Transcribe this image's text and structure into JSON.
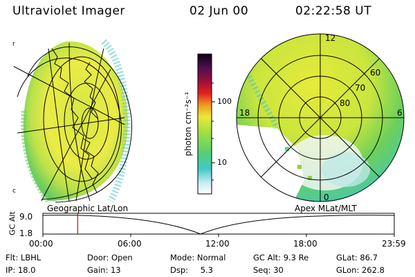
{
  "header": {
    "title": "Ultraviolet Imager",
    "date": "02 Jun 00",
    "time": "02:22:58 UT"
  },
  "colorbar": {
    "unit_label": "photon cm⁻²s⁻¹",
    "ticks": [
      "100",
      "10"
    ]
  },
  "polar_plot": {
    "mlt_labels": {
      "top": "12",
      "left": "18",
      "right": "6",
      "bottom": "0"
    },
    "lat_labels": [
      "60",
      "70",
      "80"
    ]
  },
  "orbit_plot": {
    "left_title": "Geographic Lat/Lon",
    "right_title": "Apex MLat/MLT",
    "y_axis_label": "GC Alt",
    "y_ticks": [
      "9.0",
      "1.8"
    ],
    "x_ticks": [
      "00:00",
      "06:00",
      "12:00",
      "18:00",
      "23:59"
    ],
    "current_time_fraction": 0.099
  },
  "info": {
    "row1": [
      {
        "label": "Flt:",
        "value": "LBHL"
      },
      {
        "label": "Door:",
        "value": "Open"
      },
      {
        "label": "Mode:",
        "value": "Normal"
      },
      {
        "label": "GC Alt:",
        "value": "9.3 Re"
      },
      {
        "label": "GLat:",
        "value": "86.7"
      }
    ],
    "row2": [
      {
        "label": "IP:",
        "value": "18.0"
      },
      {
        "label": "Gain:",
        "value": "13"
      },
      {
        "label": "Dsp:",
        "value": "5.3"
      },
      {
        "label": "Seq:",
        "value": "30"
      },
      {
        "label": "GLon:",
        "value": "262.8"
      }
    ]
  },
  "colors": {
    "accent_red": "#cc0000",
    "aurora_yellow": "#e8ea3a",
    "aurora_green": "#8fd24a",
    "aurora_cyan": "#3cc8c8"
  }
}
